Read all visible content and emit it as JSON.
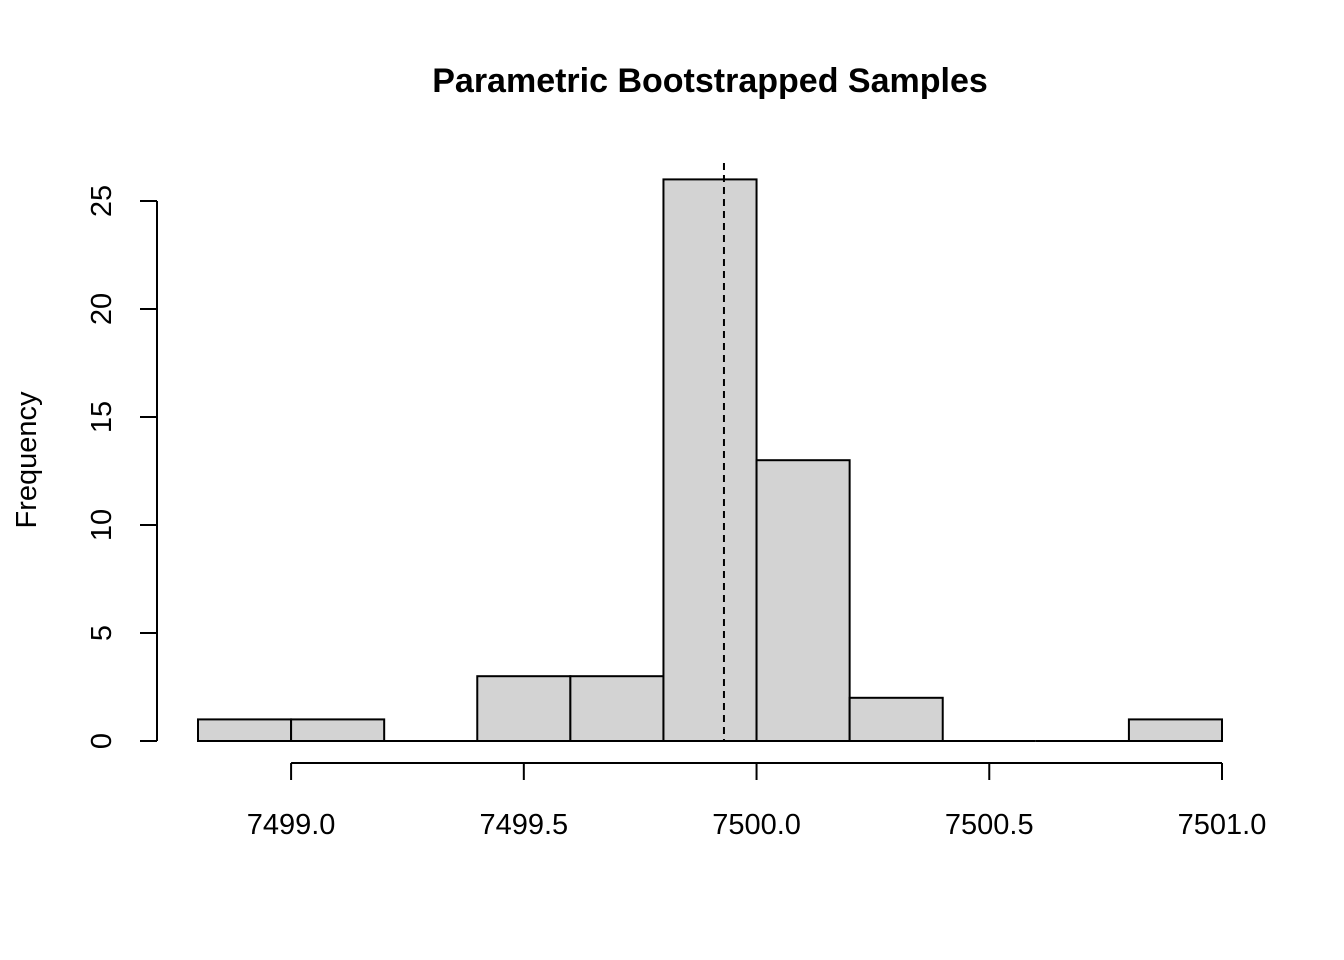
{
  "chart_data": {
    "type": "bar",
    "title": "Parametric Bootstrapped Samples",
    "xlabel": "",
    "ylabel": "Frequency",
    "bins": [
      {
        "start": 7498.8,
        "end": 7499.0,
        "count": 1
      },
      {
        "start": 7499.0,
        "end": 7499.2,
        "count": 1
      },
      {
        "start": 7499.2,
        "end": 7499.4,
        "count": 0
      },
      {
        "start": 7499.4,
        "end": 7499.6,
        "count": 3
      },
      {
        "start": 7499.6,
        "end": 7499.8,
        "count": 3
      },
      {
        "start": 7499.8,
        "end": 7500.0,
        "count": 26
      },
      {
        "start": 7500.0,
        "end": 7500.2,
        "count": 13
      },
      {
        "start": 7500.2,
        "end": 7500.4,
        "count": 2
      },
      {
        "start": 7500.4,
        "end": 7500.6,
        "count": 0
      },
      {
        "start": 7500.6,
        "end": 7500.8,
        "count": 0
      },
      {
        "start": 7500.8,
        "end": 7501.0,
        "count": 1
      }
    ],
    "xticks": [
      "7499.0",
      "7499.5",
      "7500.0",
      "7500.5",
      "7501.0"
    ],
    "yticks": [
      "0",
      "5",
      "10",
      "15",
      "20",
      "25"
    ],
    "xlim": [
      7498.8,
      7501.0
    ],
    "ylim": [
      0,
      26
    ],
    "reference_line": {
      "x": 7499.93,
      "style": "dashed"
    },
    "bar_fill": "#d3d3d3",
    "bar_stroke": "#000000",
    "grid": false
  }
}
